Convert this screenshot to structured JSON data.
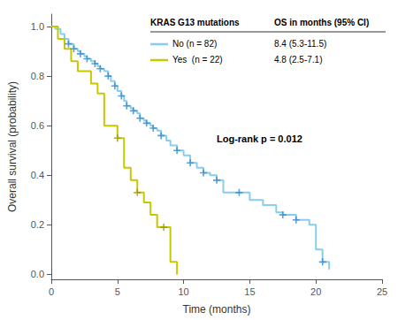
{
  "chart_data": {
    "type": "line",
    "xlabel": "Time (months)",
    "ylabel": "Overall survival (probability)",
    "xlim": [
      0,
      25
    ],
    "ylim": [
      -0.02,
      1.05
    ],
    "xticks": [
      0,
      5,
      10,
      15,
      20,
      25
    ],
    "yticks": [
      {
        "value": 0,
        "label": "0.0"
      },
      0.2,
      0.4,
      0.6,
      0.8,
      {
        "value": 1,
        "label": "1.0"
      }
    ],
    "grid": false,
    "legend": "upper right",
    "legend_title": "KRAS G13 mutations",
    "legend_header": "OS in months (95% CI)",
    "annotations": [
      "Log-rank p = 0.012"
    ],
    "series": [
      {
        "name": "No (n = 82)",
        "type": "step",
        "color": "#87CEEB",
        "annotation": "8.4 (5.3-11.5)",
        "x": [
          0,
          0.3,
          0.7,
          1.0,
          1.3,
          1.7,
          2.0,
          2.2,
          2.5,
          2.7,
          3.0,
          3.3,
          3.5,
          3.7,
          4.0,
          4.3,
          4.5,
          4.8,
          5.0,
          5.3,
          5.5,
          5.7,
          6.0,
          6.2,
          6.5,
          6.7,
          7.0,
          7.2,
          7.5,
          7.7,
          8.0,
          8.3,
          8.7,
          9.0,
          9.5,
          10.0,
          10.5,
          11.0,
          11.5,
          12.0,
          12.5,
          13.0,
          13.3,
          13.7,
          14.2,
          15.0,
          16.0,
          17.0,
          17.5,
          18.5,
          19.5,
          20.0,
          20.5,
          21.0
        ],
        "values": [
          1.0,
          0.99,
          0.97,
          0.95,
          0.93,
          0.91,
          0.9,
          0.89,
          0.88,
          0.87,
          0.86,
          0.85,
          0.84,
          0.83,
          0.82,
          0.8,
          0.78,
          0.76,
          0.74,
          0.72,
          0.7,
          0.68,
          0.67,
          0.66,
          0.65,
          0.63,
          0.62,
          0.61,
          0.6,
          0.59,
          0.58,
          0.56,
          0.54,
          0.52,
          0.5,
          0.48,
          0.45,
          0.43,
          0.41,
          0.4,
          0.38,
          0.33,
          0.33,
          0.33,
          0.33,
          0.3,
          0.28,
          0.25,
          0.24,
          0.22,
          0.2,
          0.1,
          0.05,
          0.02
        ]
      },
      {
        "name": "Yes  (n = 22)",
        "type": "step",
        "color": "#C8C800",
        "annotation": "4.8 (2.5-7.1)",
        "x": [
          0,
          0.5,
          1.0,
          1.5,
          2.0,
          3.0,
          3.5,
          4.0,
          5.0,
          5.5,
          6.0,
          6.5,
          7.0,
          7.5,
          8.0,
          8.5,
          9.0,
          9.5
        ],
        "values": [
          1.0,
          0.95,
          0.91,
          0.86,
          0.82,
          0.77,
          0.73,
          0.6,
          0.55,
          0.43,
          0.38,
          0.33,
          0.29,
          0.24,
          0.19,
          0.19,
          0.05,
          0.0
        ]
      },
      {
        "type": "scatter",
        "marker": "+",
        "color": "#3388cc",
        "x": [
          1.3,
          1.7,
          2.2,
          2.7,
          3.3,
          3.7,
          4.3,
          4.8,
          5.3,
          5.7,
          6.2,
          6.7,
          7.2,
          7.7,
          8.3,
          9.5,
          10.5,
          11.5,
          12.5,
          14.2,
          17.5,
          18.5,
          20.5
        ],
        "values": [
          0.93,
          0.91,
          0.89,
          0.87,
          0.85,
          0.83,
          0.8,
          0.76,
          0.72,
          0.68,
          0.66,
          0.63,
          0.61,
          0.59,
          0.56,
          0.5,
          0.45,
          0.41,
          0.38,
          0.33,
          0.24,
          0.22,
          0.05
        ]
      },
      {
        "type": "scatter",
        "marker": "+",
        "color": "#999900",
        "x": [
          5.0,
          6.5,
          8.5
        ],
        "values": [
          0.55,
          0.33,
          0.19
        ]
      }
    ]
  }
}
